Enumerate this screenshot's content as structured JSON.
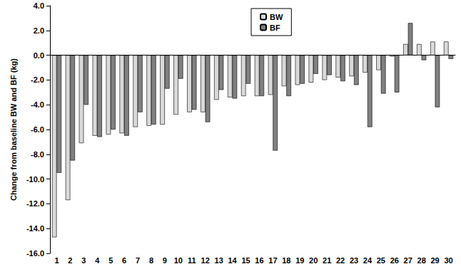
{
  "chart_data": {
    "type": "bar",
    "y_label": "Change from baseline BW and BF (kg)",
    "categories": [
      "1",
      "2",
      "3",
      "4",
      "5",
      "6",
      "7",
      "8",
      "9",
      "10",
      "11",
      "12",
      "13",
      "14",
      "15",
      "16",
      "17",
      "18",
      "19",
      "20",
      "21",
      "22",
      "23",
      "24",
      "25",
      "26",
      "27",
      "28",
      "29",
      "30"
    ],
    "series": [
      {
        "name": "BW",
        "color": "#d9d9d9",
        "values": [
          -14.7,
          -11.7,
          -7.1,
          -6.5,
          -6.4,
          -6.3,
          -5.8,
          -5.7,
          -5.6,
          -4.8,
          -4.6,
          -4.6,
          -3.6,
          -3.4,
          -3.3,
          -3.3,
          -3.2,
          -2.5,
          -2.4,
          -2.2,
          -2.0,
          -1.8,
          -1.7,
          -1.4,
          -1.2,
          -0.1,
          0.9,
          0.9,
          1.1,
          1.1
        ]
      },
      {
        "name": "BF",
        "color": "#808080",
        "values": [
          -9.5,
          -8.5,
          -4.0,
          -6.6,
          -6.0,
          -6.5,
          -4.6,
          -5.6,
          -2.7,
          -1.9,
          -4.4,
          -5.4,
          -2.8,
          -3.5,
          -2.3,
          -3.3,
          -7.7,
          -3.3,
          -2.3,
          -1.5,
          -1.6,
          -2.1,
          -2.4,
          -5.8,
          -3.1,
          -3.0,
          2.6,
          -0.4,
          -4.2,
          -0.3
        ]
      }
    ],
    "ylim": [
      -16,
      4
    ],
    "yticks": [
      {
        "value": -16,
        "label": "-16.0"
      },
      {
        "value": -14,
        "label": "-14.0"
      },
      {
        "value": -12,
        "label": "-12.0"
      },
      {
        "value": -10,
        "label": "-10.0"
      },
      {
        "value": -8,
        "label": "-8.0"
      },
      {
        "value": -6,
        "label": "-6.0"
      },
      {
        "value": -4,
        "label": "-4.0"
      },
      {
        "value": -2,
        "label": "-2.0"
      },
      {
        "value": 0,
        "label": "0.0"
      },
      {
        "value": 2,
        "label": "2.0"
      },
      {
        "value": 4,
        "label": "4.0"
      }
    ],
    "grid": false,
    "legend": "top"
  }
}
